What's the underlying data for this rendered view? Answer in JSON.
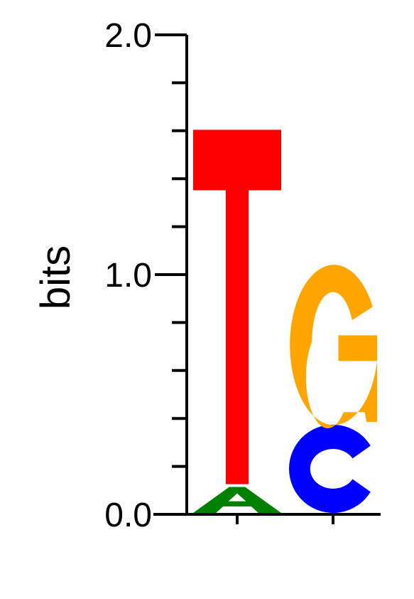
{
  "chart_data": {
    "type": "sequence-logo",
    "ylabel": "bits",
    "ylim": [
      0,
      2
    ],
    "y_ticks": [
      {
        "value": 0.0,
        "label": "0.0"
      },
      {
        "value": 1.0,
        "label": "1.0"
      },
      {
        "value": 2.0,
        "label": "2.0"
      }
    ],
    "minor_tick_step": 0.2,
    "positions": [
      {
        "index": 1,
        "stack": [
          {
            "letter": "A",
            "from": 0.0,
            "to": 0.12
          },
          {
            "letter": "T",
            "from": 0.12,
            "to": 1.61
          }
        ]
      },
      {
        "index": 2,
        "stack": [
          {
            "letter": "C",
            "from": 0.0,
            "to": 0.38
          },
          {
            "letter": "G",
            "from": 0.38,
            "to": 1.06
          }
        ]
      }
    ],
    "colors": {
      "A": "#008000",
      "C": "#0000ff",
      "G": "#ffa500",
      "T": "#ff0000"
    }
  }
}
